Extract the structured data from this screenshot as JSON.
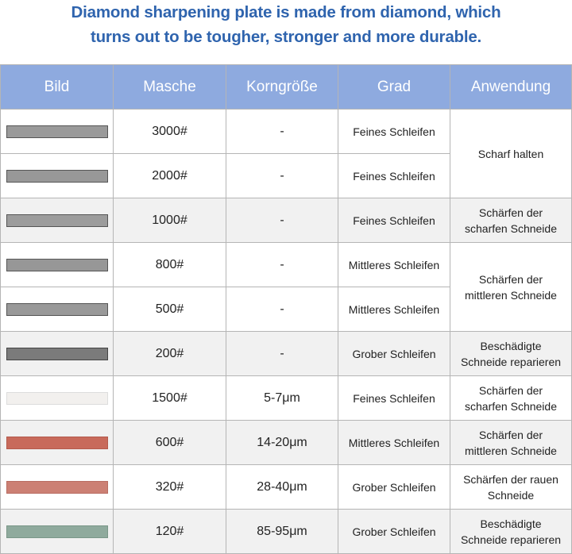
{
  "header": {
    "title_lines": [
      "Diamond sharpening plate is made from diamond, which",
      "turns out to be tougher, stronger and more durable."
    ]
  },
  "table": {
    "headers": [
      "Bild",
      "Masche",
      "Korngröße",
      "Grad",
      "Anwendung"
    ],
    "rows": [
      [
        "3000#",
        "-",
        "Feines Schleifen"
      ],
      [
        "2000#",
        "-",
        "Feines Schleifen"
      ],
      [
        "1000#",
        "-",
        "Feines Schleifen"
      ],
      [
        "800#",
        "-",
        "Mittleres Schleifen"
      ],
      [
        "500#",
        "-",
        "Mittleres Schleifen"
      ],
      [
        "200#",
        "-",
        "Grober Schleifen"
      ],
      [
        "1500#",
        "5-7μm",
        "Feines Schleifen"
      ],
      [
        "600#",
        "14-20μm",
        "Mittleres Schleifen"
      ],
      [
        "320#",
        "28-40μm",
        "Grober Schleifen"
      ],
      [
        "120#",
        "85-95μm",
        "Grober Schleifen"
      ]
    ],
    "anwendung": [
      "Scharf halten",
      "Schärfen der\nscharfen Schneide",
      "Schärfen der\nmittleren Schneide",
      "Beschädigte\nSchneide reparieren",
      "Schärfen der\nscharfen Schneide",
      "Schärfen der\nmittleren Schneide",
      "Schärfen der rauen\nSchneide",
      "Beschädigte\nSchneide reparieren"
    ]
  }
}
